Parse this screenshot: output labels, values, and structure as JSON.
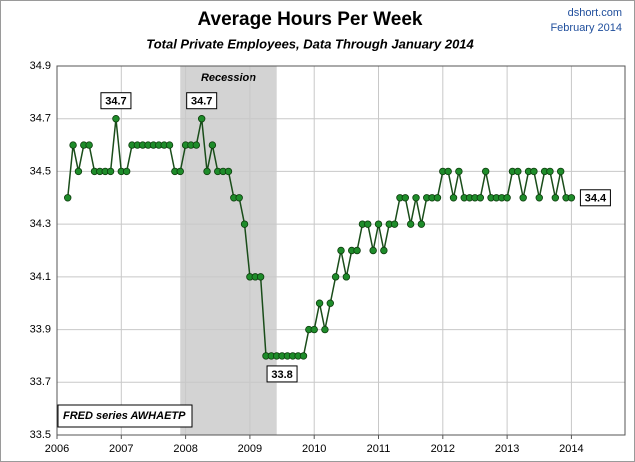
{
  "chart_data": {
    "type": "line",
    "title": "Average Hours Per Week",
    "subtitle": "Total Private Employees, Data Through January 2014",
    "source": "dshort.com",
    "date": "February 2014",
    "note": "FRED series AWHAETP",
    "recession": {
      "start": "2007-12",
      "end": "2009-06",
      "label": "Recession"
    },
    "x": [
      "2006-03",
      "2006-04",
      "2006-05",
      "2006-06",
      "2006-07",
      "2006-08",
      "2006-09",
      "2006-10",
      "2006-11",
      "2006-12",
      "2007-01",
      "2007-02",
      "2007-03",
      "2007-04",
      "2007-05",
      "2007-06",
      "2007-07",
      "2007-08",
      "2007-09",
      "2007-10",
      "2007-11",
      "2007-12",
      "2008-01",
      "2008-02",
      "2008-03",
      "2008-04",
      "2008-05",
      "2008-06",
      "2008-07",
      "2008-08",
      "2008-09",
      "2008-10",
      "2008-11",
      "2008-12",
      "2009-01",
      "2009-02",
      "2009-03",
      "2009-04",
      "2009-05",
      "2009-06",
      "2009-07",
      "2009-08",
      "2009-09",
      "2009-10",
      "2009-11",
      "2009-12",
      "2010-01",
      "2010-02",
      "2010-03",
      "2010-04",
      "2010-05",
      "2010-06",
      "2010-07",
      "2010-08",
      "2010-09",
      "2010-10",
      "2010-11",
      "2010-12",
      "2011-01",
      "2011-02",
      "2011-03",
      "2011-04",
      "2011-05",
      "2011-06",
      "2011-07",
      "2011-08",
      "2011-09",
      "2011-10",
      "2011-11",
      "2011-12",
      "2012-01",
      "2012-02",
      "2012-03",
      "2012-04",
      "2012-05",
      "2012-06",
      "2012-07",
      "2012-08",
      "2012-09",
      "2012-10",
      "2012-11",
      "2012-12",
      "2013-01",
      "2013-02",
      "2013-03",
      "2013-04",
      "2013-05",
      "2013-06",
      "2013-07",
      "2013-08",
      "2013-09",
      "2013-10",
      "2013-11",
      "2013-12",
      "2014-01"
    ],
    "series": [
      {
        "name": "AWHAETP",
        "color": "#1e8c2a",
        "line_color": "#1a4d1a",
        "values": [
          34.4,
          34.6,
          34.5,
          34.6,
          34.6,
          34.5,
          34.5,
          34.5,
          34.5,
          34.7,
          34.5,
          34.5,
          34.6,
          34.6,
          34.6,
          34.6,
          34.6,
          34.6,
          34.6,
          34.6,
          34.5,
          34.5,
          34.6,
          34.6,
          34.6,
          34.7,
          34.5,
          34.6,
          34.5,
          34.5,
          34.5,
          34.4,
          34.4,
          34.3,
          34.1,
          34.1,
          34.1,
          33.8,
          33.8,
          33.8,
          33.8,
          33.8,
          33.8,
          33.8,
          33.8,
          33.9,
          33.9,
          34.0,
          33.9,
          34.0,
          34.1,
          34.2,
          34.1,
          34.2,
          34.2,
          34.3,
          34.3,
          34.2,
          34.3,
          34.2,
          34.3,
          34.3,
          34.4,
          34.4,
          34.3,
          34.4,
          34.3,
          34.4,
          34.4,
          34.4,
          34.5,
          34.5,
          34.4,
          34.5,
          34.4,
          34.4,
          34.4,
          34.4,
          34.5,
          34.4,
          34.4,
          34.4,
          34.4,
          34.5,
          34.5,
          34.4,
          34.5,
          34.5,
          34.4,
          34.5,
          34.5,
          34.4,
          34.5,
          34.4,
          34.4
        ]
      }
    ],
    "annotations": [
      {
        "x": "2006-12",
        "label": "34.7"
      },
      {
        "x": "2008-04",
        "label": "34.7"
      },
      {
        "x": "2009-07",
        "label": "33.8"
      },
      {
        "x": "2014-01",
        "label": "34.4"
      }
    ],
    "xlim": [
      "2006-01",
      "2014-11"
    ],
    "xticks": [
      2006,
      2007,
      2008,
      2009,
      2010,
      2011,
      2012,
      2013,
      2014
    ],
    "ylim": [
      33.5,
      34.9
    ],
    "yticks": [
      33.5,
      33.7,
      33.9,
      34.1,
      34.3,
      34.5,
      34.7,
      34.9
    ],
    "grid": true
  }
}
